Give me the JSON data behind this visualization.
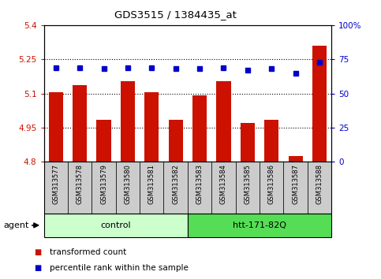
{
  "title": "GDS3515 / 1384435_at",
  "samples": [
    "GSM313577",
    "GSM313578",
    "GSM313579",
    "GSM313580",
    "GSM313581",
    "GSM313582",
    "GSM313583",
    "GSM313584",
    "GSM313585",
    "GSM313586",
    "GSM313587",
    "GSM313588"
  ],
  "transformed_count": [
    5.105,
    5.135,
    4.985,
    5.155,
    5.105,
    4.985,
    5.09,
    5.155,
    4.97,
    4.985,
    4.825,
    5.31
  ],
  "percentile_rank": [
    69,
    69,
    68,
    69,
    69,
    68,
    68,
    69,
    67,
    68,
    65,
    73
  ],
  "bar_color": "#cc1100",
  "dot_color": "#0000cc",
  "ylim_left": [
    4.8,
    5.4
  ],
  "ylim_right": [
    0,
    100
  ],
  "yticks_left": [
    4.8,
    4.95,
    5.1,
    5.25,
    5.4
  ],
  "yticks_left_labels": [
    "4.8",
    "4.95",
    "5.1",
    "5.25",
    "5.4"
  ],
  "yticks_right": [
    0,
    25,
    50,
    75,
    100
  ],
  "yticks_right_labels": [
    "0",
    "25",
    "50",
    "75",
    "100%"
  ],
  "grid_lines": [
    4.95,
    5.1,
    5.25
  ],
  "groups": [
    {
      "label": "control",
      "start": 0,
      "end": 6,
      "color": "#ccffcc"
    },
    {
      "label": "htt-171-82Q",
      "start": 6,
      "end": 12,
      "color": "#55dd55"
    }
  ],
  "agent_label": "agent",
  "legend_items": [
    {
      "label": "transformed count",
      "color": "#cc1100"
    },
    {
      "label": "percentile rank within the sample",
      "color": "#0000cc"
    }
  ],
  "bg_color": "#ffffff",
  "plot_bg": "#ffffff",
  "tick_label_bg": "#cccccc"
}
